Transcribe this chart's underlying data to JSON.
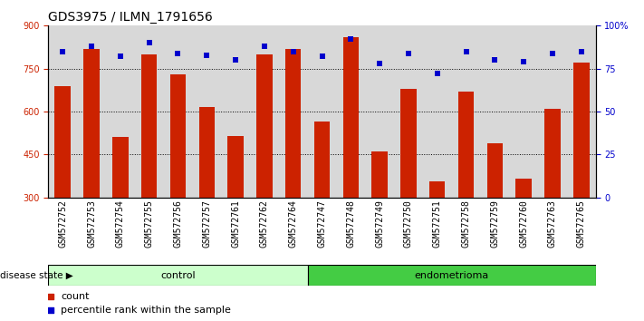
{
  "title": "GDS3975 / ILMN_1791656",
  "samples": [
    "GSM572752",
    "GSM572753",
    "GSM572754",
    "GSM572755",
    "GSM572756",
    "GSM572757",
    "GSM572761",
    "GSM572762",
    "GSM572764",
    "GSM572747",
    "GSM572748",
    "GSM572749",
    "GSM572750",
    "GSM572751",
    "GSM572758",
    "GSM572759",
    "GSM572760",
    "GSM572763",
    "GSM572765"
  ],
  "counts": [
    690,
    820,
    510,
    800,
    730,
    615,
    515,
    800,
    820,
    565,
    860,
    460,
    680,
    355,
    670,
    490,
    365,
    610,
    770
  ],
  "percentiles": [
    85,
    88,
    82,
    90,
    84,
    83,
    80,
    88,
    85,
    82,
    92,
    78,
    84,
    72,
    85,
    80,
    79,
    84,
    85
  ],
  "n_control": 9,
  "n_endo": 10,
  "bar_color": "#cc2200",
  "dot_color": "#0000cc",
  "ylim_left": [
    300,
    900
  ],
  "ylim_right": [
    0,
    100
  ],
  "yticks_left": [
    300,
    450,
    600,
    750,
    900
  ],
  "yticks_right": [
    0,
    25,
    50,
    75,
    100
  ],
  "grid_values": [
    750,
    600,
    450
  ],
  "bg_color": "#d8d8d8",
  "control_color": "#ccffcc",
  "endometrioma_color": "#44cc44",
  "title_fontsize": 10,
  "tick_fontsize": 7,
  "bar_width": 0.55,
  "label_fontsize": 7
}
